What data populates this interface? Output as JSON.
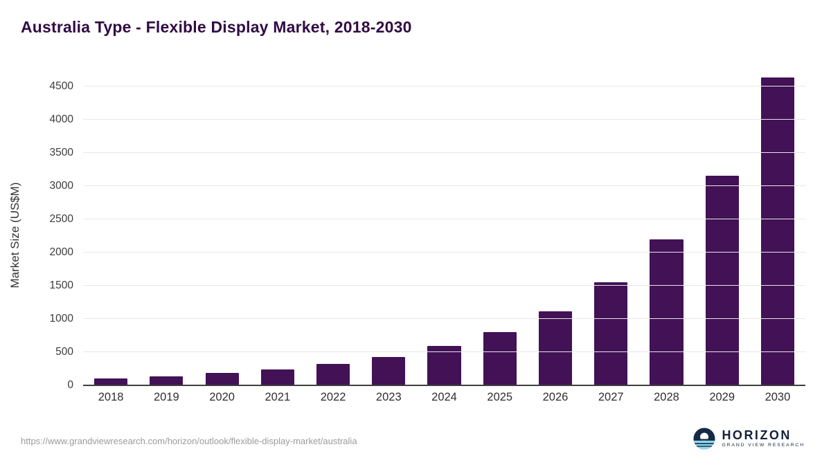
{
  "title": "Australia Type - Flexible Display Market, 2018-2030",
  "source_url": "https://www.grandviewresearch.com/horizon/outlook/flexible-display-market/australia",
  "logo": {
    "name": "HORIZON",
    "subtitle": "GRAND VIEW RESEARCH"
  },
  "colors": {
    "bar": "#421156",
    "title_text": "#310b44",
    "logo_navy": "#152a46",
    "logo_cyan": "#8fd8ea",
    "gridline": "#e8e8e8"
  },
  "chart_data": {
    "type": "bar",
    "title": "Australia Type - Flexible Display Market, 2018-2030",
    "categories": [
      "2018",
      "2019",
      "2020",
      "2021",
      "2022",
      "2023",
      "2024",
      "2025",
      "2026",
      "2027",
      "2028",
      "2029",
      "2030"
    ],
    "values": [
      105,
      140,
      185,
      235,
      320,
      430,
      590,
      800,
      1110,
      1550,
      2200,
      3160,
      4640
    ],
    "xlabel": "",
    "ylabel": "Market Size (US$M)",
    "ylim": [
      0,
      4700
    ],
    "yticks": [
      0,
      500,
      1000,
      1500,
      2000,
      2500,
      3000,
      3500,
      4000,
      4500
    ],
    "grid": true,
    "legend": "none",
    "bar_color": "#421156"
  }
}
